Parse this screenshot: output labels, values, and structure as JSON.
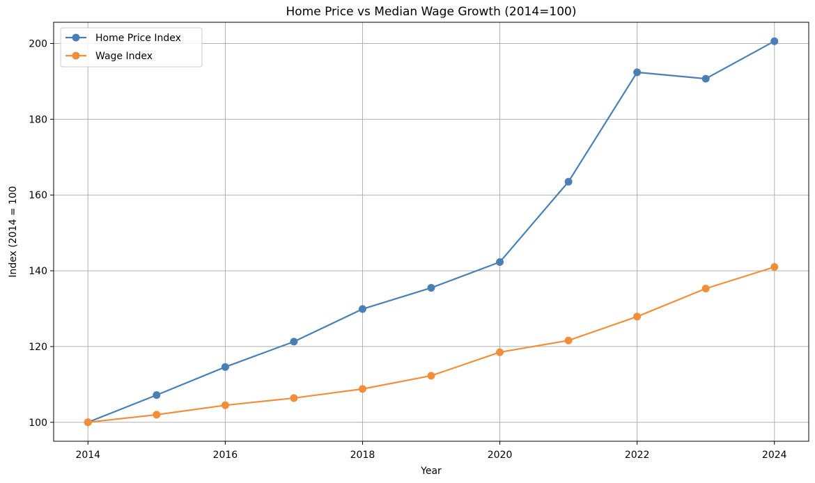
{
  "chart_data": {
    "type": "line",
    "title": "Home Price vs Median Wage Growth (2014=100)",
    "xlabel": "Year",
    "ylabel": "Index (2014 = 100",
    "x": [
      2014,
      2015,
      2016,
      2017,
      2018,
      2019,
      2020,
      2021,
      2022,
      2023,
      2024
    ],
    "xticks": [
      "2014",
      "2016",
      "2018",
      "2020",
      "2022",
      "2024"
    ],
    "yticks": [
      "100",
      "120",
      "140",
      "160",
      "180",
      "200"
    ],
    "xlim": [
      2013.5,
      2024.5
    ],
    "ylim": [
      95,
      205.6
    ],
    "grid": true,
    "legend_position": "upper-left",
    "series": [
      {
        "name": "Home Price Index",
        "color": "#4a7fb5",
        "values": [
          100.0,
          107.2,
          114.6,
          121.3,
          129.9,
          135.5,
          142.3,
          163.5,
          192.4,
          190.7,
          200.6
        ]
      },
      {
        "name": "Wage Index",
        "color": "#f28e3a",
        "values": [
          100.0,
          102.0,
          104.5,
          106.4,
          108.8,
          112.3,
          118.5,
          121.6,
          127.9,
          135.3,
          141.0
        ]
      }
    ]
  }
}
